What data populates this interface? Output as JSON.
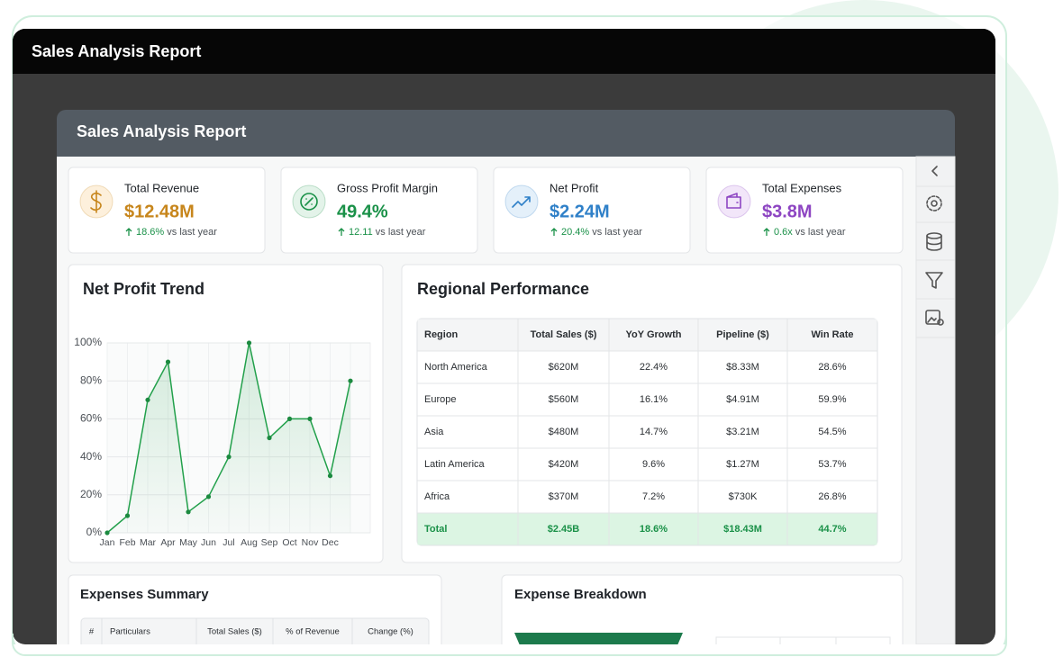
{
  "window": {
    "title": "Sales Analysis Report"
  },
  "report": {
    "title": "Sales Analysis Report"
  },
  "kpis": [
    {
      "label": "Total Revenue",
      "value": "$12.48M",
      "change": "18.6%",
      "note": "vs last year",
      "color": "#c7861c"
    },
    {
      "label": "Gross Profit Margin",
      "value": "49.4%",
      "change": "12.11",
      "note": "vs last year",
      "color": "#1a9148"
    },
    {
      "label": "Net Profit",
      "value": "$2.24M",
      "change": "20.4%",
      "note": "vs last year",
      "color": "#2f80c8"
    },
    {
      "label": "Total Expenses",
      "value": "$3.8M",
      "change": "0.6x",
      "note": "vs last year",
      "color": "#8d45c2"
    }
  ],
  "chart_data": {
    "type": "line",
    "title": "Net Profit Trend",
    "categories": [
      "Jan",
      "Feb",
      "Mar",
      "Apr",
      "May",
      "Jun",
      "Jul",
      "Aug",
      "Sep",
      "Oct",
      "Nov",
      "Dec",
      null
    ],
    "values": [
      0,
      9,
      70,
      90,
      11,
      19,
      40,
      100,
      50,
      60,
      60,
      30,
      80
    ],
    "color": "#22a04b",
    "ylim": [
      0,
      100
    ],
    "yticks": [
      {
        "value": 0,
        "label": "0%"
      },
      {
        "value": 20,
        "label": "20%"
      },
      {
        "value": 40,
        "label": "40%"
      },
      {
        "value": 60,
        "label": "60%"
      },
      {
        "value": 80,
        "label": "80%"
      },
      {
        "value": 100,
        "label": "100%"
      }
    ],
    "grid": true
  },
  "regional": {
    "title": "Regional Performance",
    "columns": [
      "Region",
      "Total Sales ($)",
      "YoY Growth",
      "Pipeline ($)",
      "Win Rate"
    ],
    "rows": [
      [
        "North America",
        "$620M",
        "22.4%",
        "$8.33M",
        "28.6%"
      ],
      [
        "Europe",
        "$560M",
        "16.1%",
        "$4.91M",
        "59.9%"
      ],
      [
        "Asia",
        "$480M",
        "14.7%",
        "$3.21M",
        "54.5%"
      ],
      [
        "Latin America",
        "$420M",
        "9.6%",
        "$1.27M",
        "53.7%"
      ],
      [
        "Africa",
        "$370M",
        "7.2%",
        "$730K",
        "26.8%"
      ]
    ],
    "total": [
      "Total",
      "$2.45B",
      "18.6%",
      "$18.43M",
      "44.7%"
    ]
  },
  "expenses_summary": {
    "title": "Expenses Summary",
    "columns": [
      "#",
      "Particulars",
      "Total Sales ($)",
      "% of Revenue",
      "Change (%)"
    ]
  },
  "expense_breakdown": {
    "title": "Expense Breakdown"
  }
}
